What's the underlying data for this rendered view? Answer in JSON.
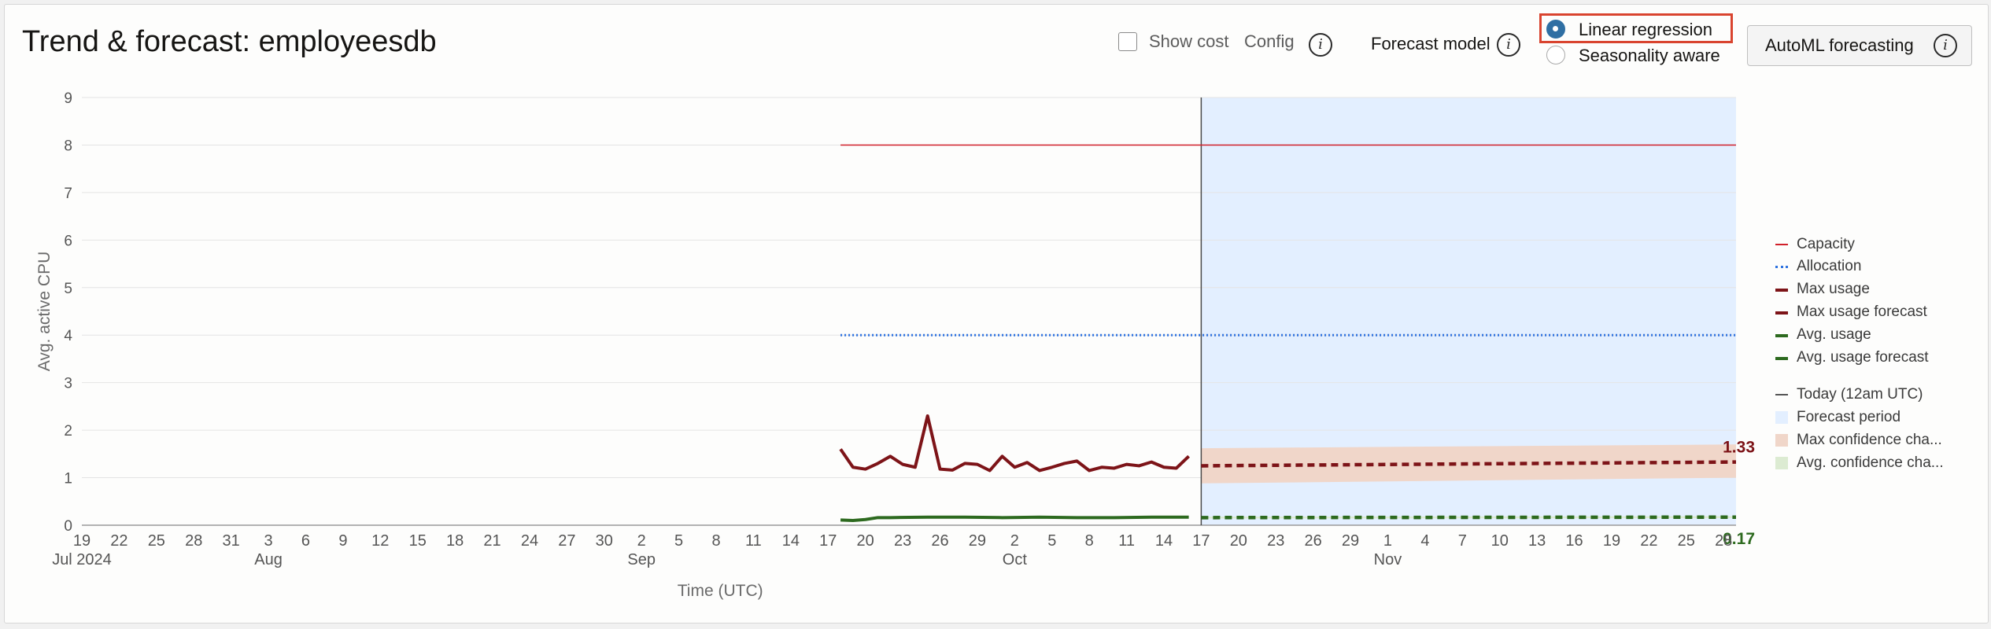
{
  "header": {
    "title": "Trend & forecast: employeesdb",
    "show_cost": "Show cost",
    "config": "Config",
    "forecast_model": "Forecast model",
    "radio_linear": "Linear regression",
    "radio_seasonal": "Seasonality aware",
    "automl": "AutoML forecasting",
    "info_glyph": "i"
  },
  "chart_data": {
    "type": "line",
    "ylabel": "Avg. active CPU",
    "xlabel": "Time (UTC)",
    "ylim": [
      0,
      9
    ],
    "y_ticks": [
      "0",
      "1",
      "2",
      "3",
      "4",
      "5",
      "6",
      "7",
      "8",
      "9"
    ],
    "x_ticks": [
      "19",
      "22",
      "25",
      "28",
      "31",
      "3",
      "6",
      "9",
      "12",
      "15",
      "18",
      "21",
      "24",
      "27",
      "30",
      "2",
      "5",
      "8",
      "11",
      "14",
      "17",
      "20",
      "23",
      "26",
      "29",
      "2",
      "5",
      "8",
      "11",
      "14",
      "17",
      "20",
      "23",
      "26",
      "29",
      "1",
      "4",
      "7",
      "10",
      "13",
      "16",
      "19",
      "22",
      "25",
      "28"
    ],
    "x_ticks_dates": [
      "2024-07-19",
      "2024-07-22",
      "2024-07-25",
      "2024-07-28",
      "2024-07-31",
      "2024-08-03",
      "2024-08-06",
      "2024-08-09",
      "2024-08-12",
      "2024-08-15",
      "2024-08-18",
      "2024-08-21",
      "2024-08-24",
      "2024-08-27",
      "2024-08-30",
      "2024-09-02",
      "2024-09-05",
      "2024-09-08",
      "2024-09-11",
      "2024-09-14",
      "2024-09-17",
      "2024-09-20",
      "2024-09-23",
      "2024-09-26",
      "2024-09-29",
      "2024-10-02",
      "2024-10-05",
      "2024-10-08",
      "2024-10-11",
      "2024-10-14",
      "2024-10-17",
      "2024-10-20",
      "2024-10-23",
      "2024-10-26",
      "2024-10-29",
      "2024-11-01",
      "2024-11-04",
      "2024-11-07",
      "2024-11-10",
      "2024-11-13",
      "2024-11-16",
      "2024-11-19",
      "2024-11-22",
      "2024-11-25",
      "2024-11-28"
    ],
    "month_labels": [
      {
        "label": "Jul 2024",
        "date": "2024-07-19"
      },
      {
        "label": "Aug",
        "date": "2024-08-03"
      },
      {
        "label": "Sep",
        "date": "2024-09-02"
      },
      {
        "label": "Oct",
        "date": "2024-10-02"
      },
      {
        "label": "Nov",
        "date": "2024-11-01"
      }
    ],
    "x_range": [
      "2024-07-19",
      "2024-11-29"
    ],
    "today": "2024-10-17",
    "forecast_period": [
      "2024-10-17",
      "2024-11-29"
    ],
    "series": [
      {
        "name": "Capacity",
        "color": "#d0202a",
        "style": "solid",
        "x": [
          "2024-09-18",
          "2024-11-29"
        ],
        "values": [
          8,
          8
        ]
      },
      {
        "name": "Allocation",
        "color": "#2f73e0",
        "style": "dotted",
        "x": [
          "2024-09-18",
          "2024-11-29"
        ],
        "values": [
          4,
          4
        ]
      },
      {
        "name": "Max usage",
        "color": "#7d1418",
        "style": "solid",
        "x": [
          "2024-09-18",
          "2024-09-19",
          "2024-09-20",
          "2024-09-21",
          "2024-09-22",
          "2024-09-23",
          "2024-09-24",
          "2024-09-25",
          "2024-09-26",
          "2024-09-27",
          "2024-09-28",
          "2024-09-29",
          "2024-09-30",
          "2024-10-01",
          "2024-10-02",
          "2024-10-03",
          "2024-10-04",
          "2024-10-05",
          "2024-10-06",
          "2024-10-07",
          "2024-10-08",
          "2024-10-09",
          "2024-10-10",
          "2024-10-11",
          "2024-10-12",
          "2024-10-13",
          "2024-10-14",
          "2024-10-15",
          "2024-10-16"
        ],
        "values": [
          1.6,
          1.22,
          1.18,
          1.3,
          1.45,
          1.28,
          1.22,
          2.3,
          1.18,
          1.16,
          1.3,
          1.28,
          1.15,
          1.45,
          1.22,
          1.32,
          1.15,
          1.22,
          1.3,
          1.35,
          1.15,
          1.22,
          1.2,
          1.28,
          1.25,
          1.33,
          1.22,
          1.2,
          1.45
        ]
      },
      {
        "name": "Max usage forecast",
        "color": "#7d1418",
        "style": "dashed",
        "x": [
          "2024-10-17",
          "2024-11-29"
        ],
        "values": [
          1.25,
          1.33
        ]
      },
      {
        "name": "Avg. usage",
        "color": "#2d6a1f",
        "style": "solid",
        "x": [
          "2024-09-18",
          "2024-09-19",
          "2024-09-20",
          "2024-09-21",
          "2024-09-22",
          "2024-09-25",
          "2024-09-28",
          "2024-10-01",
          "2024-10-04",
          "2024-10-07",
          "2024-10-10",
          "2024-10-13",
          "2024-10-16"
        ],
        "values": [
          0.11,
          0.1,
          0.12,
          0.16,
          0.16,
          0.17,
          0.17,
          0.16,
          0.17,
          0.16,
          0.16,
          0.17,
          0.17
        ]
      },
      {
        "name": "Avg. usage forecast",
        "color": "#2d6a1f",
        "style": "dashed",
        "x": [
          "2024-10-17",
          "2024-11-29"
        ],
        "values": [
          0.16,
          0.17
        ]
      },
      {
        "name": "Max confidence cha...",
        "color": "#f0d6c9",
        "style": "band",
        "x": [
          "2024-10-17",
          "2024-11-29"
        ],
        "low": [
          0.88,
          1.0
        ],
        "high": [
          1.62,
          1.7
        ]
      },
      {
        "name": "Avg. confidence cha...",
        "color": "#dcebd2",
        "style": "band",
        "x": [
          "2024-10-17",
          "2024-11-29"
        ],
        "low": [
          0.14,
          0.15
        ],
        "high": [
          0.18,
          0.19
        ]
      }
    ],
    "end_labels": [
      {
        "text": "1.33",
        "value": 1.33,
        "color": "#7d1418"
      },
      {
        "text": "0.17",
        "value": 0.17,
        "color": "#2d6a1f"
      }
    ],
    "legend": {
      "placement": "right",
      "items": [
        {
          "label": "Capacity",
          "symbol": "line",
          "color": "#d0202a"
        },
        {
          "label": "Allocation",
          "symbol": "dotted",
          "color": "#2f73e0"
        },
        {
          "label": "Max usage",
          "symbol": "thick",
          "color": "#7d1418"
        },
        {
          "label": "Max usage forecast",
          "symbol": "dashed",
          "color": "#7d1418"
        },
        {
          "label": "Avg. usage",
          "symbol": "thick",
          "color": "#2d6a1f"
        },
        {
          "label": "Avg. usage forecast",
          "symbol": "dashed",
          "color": "#2d6a1f"
        },
        {
          "label": "Today (12am UTC)",
          "symbol": "line",
          "color": "#555555"
        },
        {
          "label": "Forecast period",
          "symbol": "box",
          "color": "#e3efff"
        },
        {
          "label": "Max confidence cha...",
          "symbol": "box",
          "color": "#f0d6c9"
        },
        {
          "label": "Avg. confidence cha...",
          "symbol": "box",
          "color": "#dcebd2"
        }
      ]
    },
    "grid": true
  }
}
